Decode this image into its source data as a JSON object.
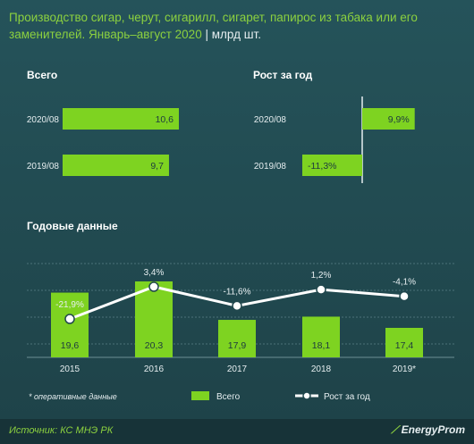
{
  "header": {
    "title": "Производство сигар, черут, сигарилл, сигарет, папирос из табака или его заменителей. Январь–август 2020",
    "unit": "| млрд шт."
  },
  "sections": {
    "total": "Всего",
    "growth": "Рост за год",
    "annual": "Годовые данные"
  },
  "colors": {
    "bar": "#7ed321",
    "line": "#ffffff",
    "text": "#e6eef0",
    "accent": "#8cd13f"
  },
  "chart_data": [
    {
      "type": "bar",
      "orientation": "horizontal",
      "title": "Всего",
      "categories": [
        "2020/08",
        "2019/08"
      ],
      "values": [
        10.6,
        9.7
      ],
      "labels": [
        "10,6",
        "9,7"
      ]
    },
    {
      "type": "bar",
      "orientation": "horizontal",
      "title": "Рост за год",
      "categories": [
        "2020/08",
        "2019/08"
      ],
      "values": [
        9.9,
        -11.3
      ],
      "labels": [
        "9,9%",
        "-11,3%"
      ]
    },
    {
      "type": "bar+line",
      "title": "Годовые данные",
      "categories": [
        "2015",
        "2016",
        "2017",
        "2018",
        "2019*"
      ],
      "series": [
        {
          "name": "Всего",
          "type": "bar",
          "values": [
            19.6,
            20.3,
            17.9,
            18.1,
            17.4
          ],
          "labels": [
            "19,6",
            "20,3",
            "17,9",
            "18,1",
            "17,4"
          ]
        },
        {
          "name": "Рост за год",
          "type": "line",
          "values": [
            -21.9,
            3.4,
            -11.6,
            1.2,
            -4.1
          ],
          "labels": [
            "-21,9%",
            "3,4%",
            "-11,6%",
            "1,2%",
            "-4,1%"
          ]
        }
      ],
      "grid": true,
      "legend": "bottom",
      "note": "* оперативные данные"
    }
  ],
  "footer": {
    "source": "Источник: КС МНЭ РК",
    "logo": "EnergyProm"
  }
}
